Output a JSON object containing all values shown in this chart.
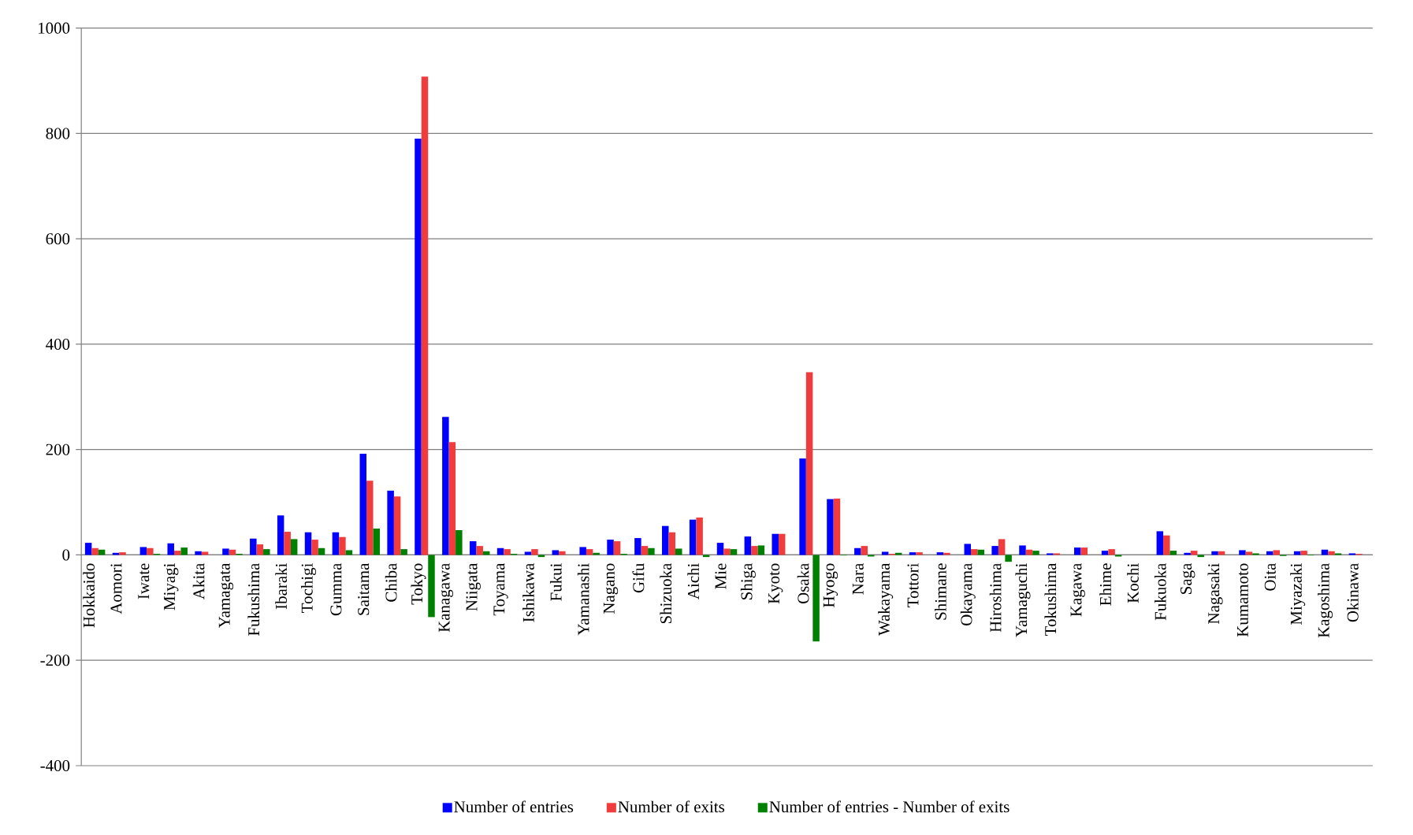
{
  "chart_data": {
    "type": "bar",
    "categories": [
      "Hokkaido",
      "Aomori",
      "Iwate",
      "Miyagi",
      "Akita",
      "Yamagata",
      "Fukushima",
      "Ibaraki",
      "Tochigi",
      "Gumma",
      "Saitama",
      "Chiba",
      "Tokyo",
      "Kanagawa",
      "Niigata",
      "Toyama",
      "Ishikawa",
      "Fukui",
      "Yamanashi",
      "Nagano",
      "Gifu",
      "Shizuoka",
      "Aichi",
      "Mie",
      "Shiga",
      "Kyoto",
      "Osaka",
      "Hyogo",
      "Nara",
      "Wakayama",
      "Tottori",
      "Shimane",
      "Okayama",
      "Hiroshima",
      "Yamaguchi",
      "Tokushima",
      "Kagawa",
      "Ehime",
      "Kochi",
      "Fukuoka",
      "Saga",
      "Nagasaki",
      "Kumamoto",
      "Oita",
      "Miyazaki",
      "Kagoshima",
      "Okinawa"
    ],
    "series": [
      {
        "name": "Number of entries",
        "color": "#0000ff",
        "values": [
          23,
          4,
          15,
          22,
          7,
          12,
          31,
          75,
          43,
          43,
          192,
          122,
          790,
          262,
          26,
          13,
          6,
          9,
          15,
          29,
          32,
          55,
          67,
          23,
          35,
          40,
          183,
          106,
          13,
          6,
          5,
          5,
          21,
          17,
          18,
          3,
          14,
          8,
          0,
          45,
          4,
          7,
          9,
          7,
          7,
          10,
          3
        ]
      },
      {
        "name": "Number of exits",
        "color": "#f03c3c",
        "values": [
          13,
          5,
          13,
          8,
          6,
          10,
          20,
          44,
          29,
          34,
          141,
          111,
          908,
          214,
          17,
          11,
          11,
          7,
          11,
          26,
          17,
          43,
          71,
          12,
          17,
          40,
          347,
          107,
          17,
          2,
          5,
          4,
          11,
          30,
          10,
          3,
          14,
          11,
          0,
          37,
          8,
          7,
          6,
          9,
          8,
          7,
          2
        ]
      },
      {
        "name": "Number of entries - Number of exits",
        "color": "#008000",
        "values": [
          10,
          0,
          2,
          14,
          null,
          2,
          11,
          30,
          13,
          9,
          50,
          11,
          -118,
          47,
          7,
          2,
          -4,
          null,
          4,
          2,
          13,
          12,
          -4,
          11,
          18,
          0,
          -164,
          -1,
          -3,
          4,
          0,
          null,
          10,
          -13,
          8,
          0,
          0,
          -3,
          0,
          8,
          -4,
          0,
          3,
          -2,
          -1,
          3,
          null
        ]
      }
    ],
    "ylim": [
      -400,
      1000
    ],
    "yticks": [
      -400,
      -200,
      0,
      200,
      400,
      600,
      800,
      1000
    ],
    "grid": "y",
    "legend": "bottom"
  }
}
